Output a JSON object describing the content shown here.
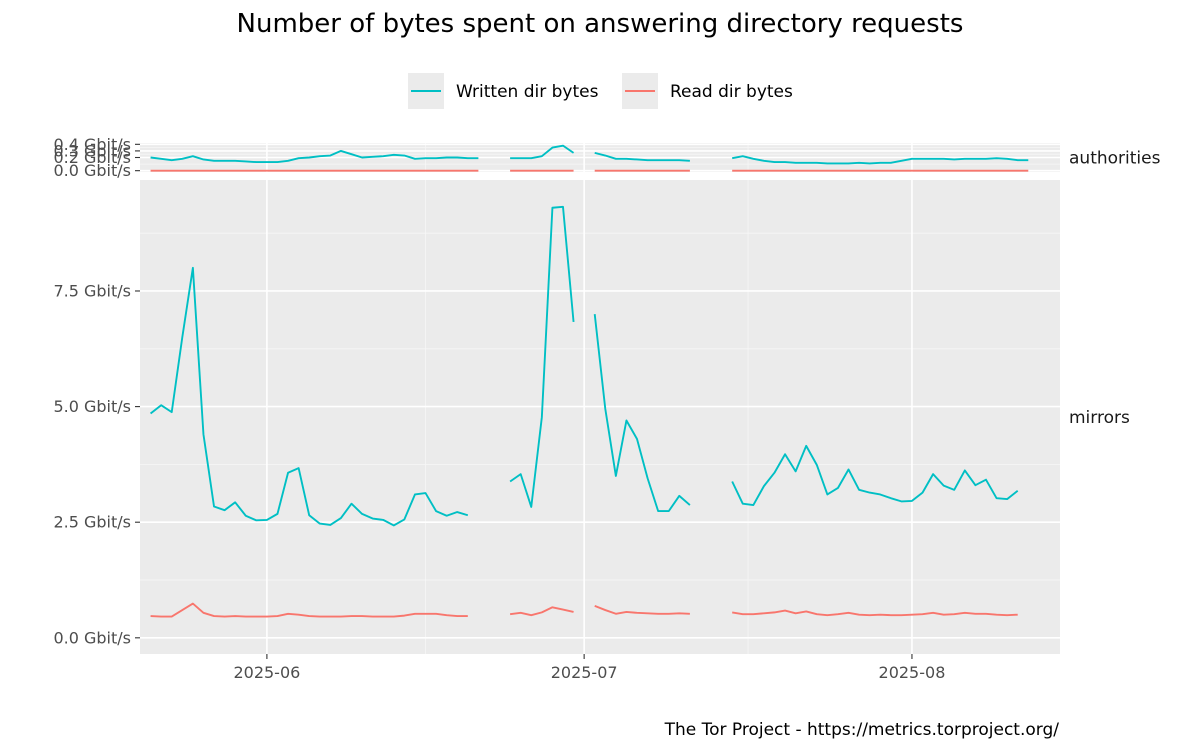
{
  "chart_data": {
    "type": "line",
    "title": "Number of bytes spent on answering directory requests",
    "caption": "The Tor Project - https://metrics.torproject.org/",
    "xlabel": "",
    "ylabel": "",
    "x_ticks": [
      "2025-06-01",
      "2025-07-01",
      "2025-08-01"
    ],
    "x_tick_labels": [
      "2025-06",
      "2025-07",
      "2025-08"
    ],
    "xlim": [
      "2025-05-20",
      "2025-08-15"
    ],
    "legend": {
      "position": "top",
      "entries": [
        "Written dir bytes",
        "Read dir bytes"
      ]
    },
    "colors": {
      "Written dir bytes": "#00bfc4",
      "Read dir bytes": "#f8766d"
    },
    "grid": true,
    "facets": [
      {
        "name": "authorities",
        "ylim": [
          -0.02,
          0.42
        ],
        "y_ticks": [
          0.0,
          0.2,
          0.3,
          0.4
        ],
        "y_tick_labels": [
          "0.0 Gbit/s",
          "0.2 Gbit/s",
          "0.3 Gbit/s",
          "0.4 Gbit/s"
        ],
        "series": [
          {
            "name": "Written dir bytes",
            "segments": [
              {
                "start": "2025-05-21",
                "values": [
                  0.2,
                  0.18,
                  0.16,
                  0.18,
                  0.22,
                  0.17,
                  0.15,
                  0.15,
                  0.15,
                  0.14,
                  0.13,
                  0.13,
                  0.13,
                  0.15,
                  0.19,
                  0.2,
                  0.22,
                  0.23,
                  0.3,
                  0.25,
                  0.2,
                  0.21,
                  0.22,
                  0.24,
                  0.23,
                  0.18,
                  0.19,
                  0.19,
                  0.2,
                  0.2,
                  0.19,
                  0.19
                ]
              },
              {
                "start": "2025-06-24",
                "values": [
                  0.19,
                  0.19,
                  0.19,
                  0.22,
                  0.35,
                  0.38,
                  0.27
                ]
              },
              {
                "start": "2025-07-02",
                "values": [
                  0.27,
                  0.23,
                  0.18,
                  0.18,
                  0.17,
                  0.16,
                  0.16,
                  0.16,
                  0.16,
                  0.15
                ]
              },
              {
                "start": "2025-07-15",
                "values": [
                  0.19,
                  0.22,
                  0.18,
                  0.15,
                  0.13,
                  0.13,
                  0.12,
                  0.12,
                  0.12,
                  0.11,
                  0.11,
                  0.11,
                  0.12,
                  0.11,
                  0.12,
                  0.12,
                  0.15,
                  0.18,
                  0.18,
                  0.18,
                  0.18,
                  0.17,
                  0.18,
                  0.18,
                  0.18,
                  0.19,
                  0.18,
                  0.16,
                  0.16
                ]
              }
            ]
          },
          {
            "name": "Read dir bytes",
            "segments": [
              {
                "start": "2025-05-21",
                "values": [
                  0.0,
                  0.0,
                  0.0,
                  0.0,
                  0.0,
                  0.0,
                  0.0,
                  0.0,
                  0.0,
                  0.0,
                  0.0,
                  0.0,
                  0.0,
                  0.0,
                  0.0,
                  0.0,
                  0.0,
                  0.0,
                  0.0,
                  0.0,
                  0.0,
                  0.0,
                  0.0,
                  0.0,
                  0.0,
                  0.0,
                  0.0,
                  0.0,
                  0.0,
                  0.0,
                  0.0,
                  0.0
                ]
              },
              {
                "start": "2025-06-24",
                "values": [
                  0.0,
                  0.0,
                  0.0,
                  0.0,
                  0.0,
                  0.0,
                  0.0
                ]
              },
              {
                "start": "2025-07-02",
                "values": [
                  0.0,
                  0.0,
                  0.0,
                  0.0,
                  0.0,
                  0.0,
                  0.0,
                  0.0,
                  0.0,
                  0.0
                ]
              },
              {
                "start": "2025-07-15",
                "values": [
                  0.0,
                  0.0,
                  0.0,
                  0.0,
                  0.0,
                  0.0,
                  0.0,
                  0.0,
                  0.0,
                  0.0,
                  0.0,
                  0.0,
                  0.0,
                  0.0,
                  0.0,
                  0.0,
                  0.0,
                  0.0,
                  0.0,
                  0.0,
                  0.0,
                  0.0,
                  0.0,
                  0.0,
                  0.0,
                  0.0,
                  0.0,
                  0.0,
                  0.0
                ]
              }
            ]
          }
        ]
      },
      {
        "name": "mirrors",
        "ylim": [
          -0.35,
          9.9
        ],
        "y_ticks": [
          0.0,
          2.5,
          5.0,
          7.5
        ],
        "y_tick_labels": [
          "0.0 Gbit/s",
          "2.5 Gbit/s",
          "5.0 Gbit/s",
          "7.5 Gbit/s"
        ],
        "series": [
          {
            "name": "Written dir bytes",
            "segments": [
              {
                "start": "2025-05-21",
                "values": [
                  4.85,
                  5.03,
                  4.88,
                  6.5,
                  8.0,
                  4.4,
                  2.84,
                  2.76,
                  2.93,
                  2.64,
                  2.54,
                  2.55,
                  2.68,
                  3.57,
                  3.67,
                  2.65,
                  2.47,
                  2.44,
                  2.59,
                  2.9,
                  2.68,
                  2.58,
                  2.55,
                  2.43,
                  2.56,
                  3.1,
                  3.13,
                  2.74,
                  2.64,
                  2.72,
                  2.65
                ]
              },
              {
                "start": "2025-06-24",
                "values": [
                  3.38,
                  3.54,
                  2.83,
                  4.77,
                  9.3,
                  9.32,
                  6.83
                ]
              },
              {
                "start": "2025-07-02",
                "values": [
                  7.0,
                  4.95,
                  3.5,
                  4.7,
                  4.3,
                  3.45,
                  2.74,
                  2.74,
                  3.07,
                  2.87
                ]
              },
              {
                "start": "2025-07-15",
                "values": [
                  3.38,
                  2.9,
                  2.87,
                  3.28,
                  3.57,
                  3.97,
                  3.6,
                  4.15,
                  3.74,
                  3.1,
                  3.24,
                  3.64,
                  3.2,
                  3.14,
                  3.1,
                  3.02,
                  2.95,
                  2.96,
                  3.14,
                  3.54,
                  3.29,
                  3.2,
                  3.62,
                  3.3,
                  3.42,
                  3.02,
                  3.0,
                  3.18
                ]
              }
            ]
          },
          {
            "name": "Read dir bytes",
            "segments": [
              {
                "start": "2025-05-21",
                "values": [
                  0.47,
                  0.46,
                  0.46,
                  0.6,
                  0.74,
                  0.54,
                  0.47,
                  0.46,
                  0.47,
                  0.46,
                  0.46,
                  0.46,
                  0.47,
                  0.52,
                  0.5,
                  0.47,
                  0.46,
                  0.46,
                  0.46,
                  0.47,
                  0.47,
                  0.46,
                  0.46,
                  0.46,
                  0.48,
                  0.52,
                  0.52,
                  0.52,
                  0.49,
                  0.47,
                  0.47
                ]
              },
              {
                "start": "2025-06-24",
                "values": [
                  0.51,
                  0.54,
                  0.49,
                  0.55,
                  0.66,
                  0.61,
                  0.56
                ]
              },
              {
                "start": "2025-07-02",
                "values": [
                  0.69,
                  0.6,
                  0.52,
                  0.56,
                  0.54,
                  0.53,
                  0.52,
                  0.52,
                  0.53,
                  0.52
                ]
              },
              {
                "start": "2025-07-15",
                "values": [
                  0.55,
                  0.51,
                  0.51,
                  0.53,
                  0.55,
                  0.59,
                  0.53,
                  0.57,
                  0.51,
                  0.49,
                  0.51,
                  0.54,
                  0.5,
                  0.49,
                  0.5,
                  0.49,
                  0.49,
                  0.5,
                  0.51,
                  0.54,
                  0.5,
                  0.51,
                  0.54,
                  0.52,
                  0.52,
                  0.5,
                  0.49,
                  0.5
                ]
              }
            ]
          }
        ]
      }
    ]
  }
}
